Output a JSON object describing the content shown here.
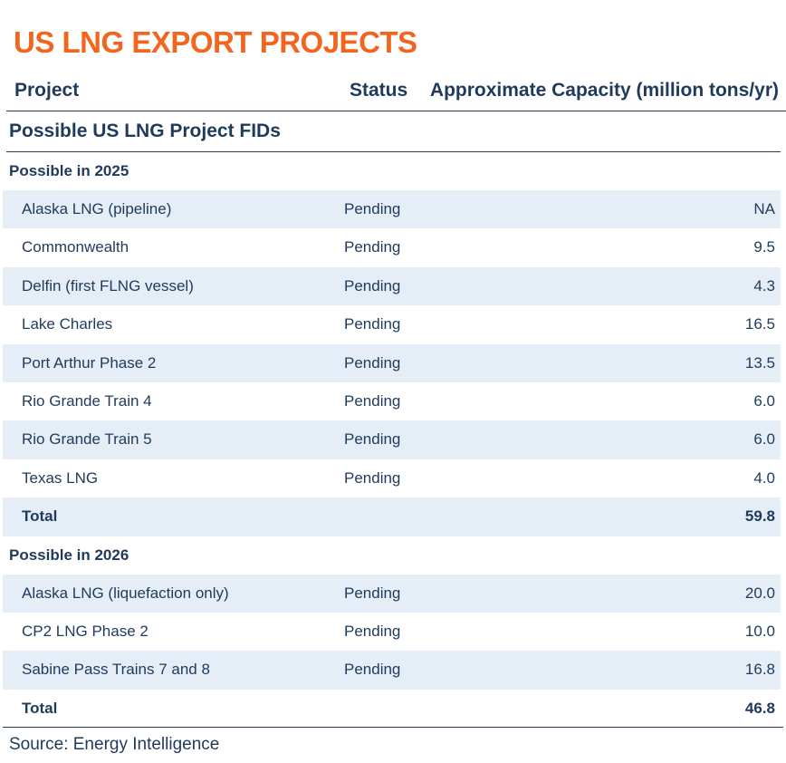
{
  "title": "US LNG EXPORT PROJECTS",
  "columns": {
    "project": "Project",
    "status": "Status",
    "capacity": "Approximate Capacity (million tons/yr)"
  },
  "section_title": "Possible US LNG Project FIDs",
  "groups": [
    {
      "label": "Possible in 2025",
      "rows": [
        {
          "project": "Alaska LNG (pipeline)",
          "status": "Pending",
          "capacity": "NA"
        },
        {
          "project": "Commonwealth",
          "status": "Pending",
          "capacity": "9.5"
        },
        {
          "project": "Delfin (first FLNG vessel)",
          "status": "Pending",
          "capacity": "4.3"
        },
        {
          "project": "Lake Charles",
          "status": "Pending",
          "capacity": "16.5"
        },
        {
          "project": "Port Arthur Phase 2",
          "status": "Pending",
          "capacity": "13.5"
        },
        {
          "project": "Rio Grande Train 4",
          "status": "Pending",
          "capacity": "6.0"
        },
        {
          "project": "Rio Grande Train 5",
          "status": "Pending",
          "capacity": "6.0"
        },
        {
          "project": "Texas LNG",
          "status": "Pending",
          "capacity": "4.0"
        }
      ],
      "total": {
        "label": "Total",
        "capacity": "59.8"
      }
    },
    {
      "label": "Possible in 2026",
      "rows": [
        {
          "project": "Alaska LNG (liquefaction only)",
          "status": "Pending",
          "capacity": "20.0"
        },
        {
          "project": "CP2 LNG Phase 2",
          "status": "Pending",
          "capacity": "10.0"
        },
        {
          "project": "Sabine Pass Trains 7 and 8",
          "status": "Pending",
          "capacity": "16.8"
        }
      ],
      "total": {
        "label": "Total",
        "capacity": "46.8"
      }
    }
  ],
  "source": "Source: Energy Intelligence",
  "colors": {
    "title": "#f2651f",
    "text": "#1f3a5c",
    "row_shade": "#e5edf6",
    "rule": "#2a3e55"
  }
}
